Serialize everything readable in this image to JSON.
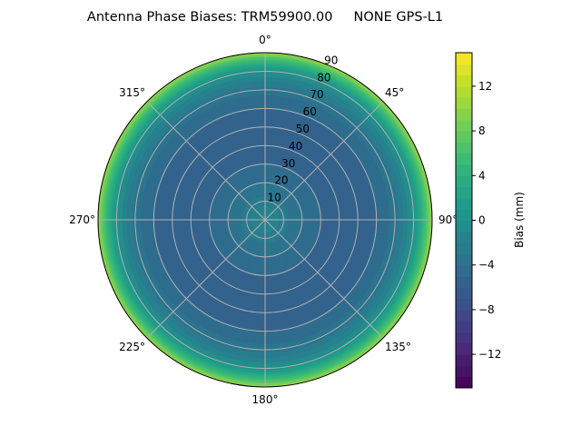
{
  "chart_data": {
    "type": "polar-contour",
    "title": "Antenna Phase Biases: TRM59900.00     NONE GPS-L1",
    "angular_ticks": [
      "0°",
      "45°",
      "90°",
      "135°",
      "180°",
      "225°",
      "270°",
      "315°"
    ],
    "radial_ticks": [
      "10",
      "20",
      "30",
      "40",
      "50",
      "60",
      "70",
      "80",
      "90"
    ],
    "radial_range": [
      0,
      90
    ],
    "theta_zero": "north",
    "theta_direction": "clockwise",
    "grid": true,
    "colorbar": {
      "label": "Bias (mm)",
      "range": [
        -15,
        15
      ],
      "ticks": [
        "−12",
        "−8",
        "−4",
        "0",
        "4",
        "8",
        "12"
      ],
      "tick_values": [
        -12,
        -8,
        -4,
        0,
        4,
        8,
        12
      ],
      "colormap": "viridis",
      "level_step": 1
    },
    "radial_profile": {
      "zenith_deg": [
        0,
        5,
        10,
        15,
        20,
        30,
        40,
        50,
        60,
        65,
        70,
        75,
        80,
        84,
        87,
        90
      ],
      "bias_mm": [
        -1,
        -1.5,
        -2.5,
        -3.5,
        -4,
        -5,
        -5.5,
        -5.5,
        -5,
        -4.5,
        -3.5,
        -2,
        0,
        3,
        6,
        10
      ]
    }
  }
}
